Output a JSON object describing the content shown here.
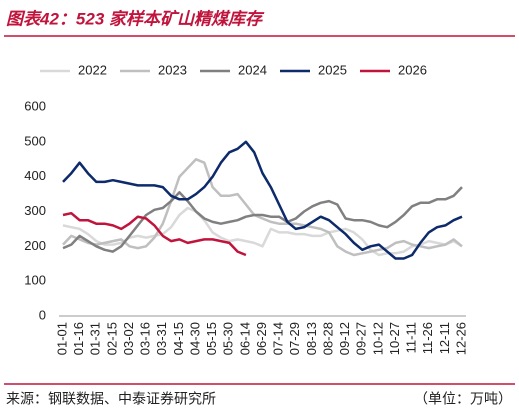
{
  "chart_data": {
    "type": "line",
    "title": "图表42：523 家样本矿山精煤库存",
    "source": "来源：钢联数据、中泰证券研究所",
    "unit": "（单位：万吨）",
    "categories": [
      "01-01",
      null,
      "01-16",
      null,
      "01-31",
      null,
      "02-15",
      null,
      "03-02",
      null,
      "03-16",
      null,
      "03-31",
      null,
      "04-15",
      null,
      "04-30",
      null,
      "05-15",
      null,
      "05-30",
      null,
      "06-14",
      null,
      "06-29",
      null,
      "07-14",
      null,
      "07-29",
      null,
      "08-13",
      null,
      "08-28",
      null,
      "09-12",
      null,
      "09-27",
      null,
      "10-12",
      null,
      "10-27",
      null,
      "11-11",
      null,
      "11-26",
      null,
      "12-11",
      null,
      "12-26"
    ],
    "ylim": [
      0,
      600
    ],
    "yticks": [
      0,
      100,
      200,
      300,
      400,
      500,
      600
    ],
    "grid": false,
    "series": [
      {
        "name": "2022",
        "color": "#d9d9d9",
        "values": [
          260,
          255,
          250,
          235,
          215,
          205,
          205,
          210,
          225,
          230,
          225,
          230,
          235,
          255,
          290,
          310,
          300,
          275,
          240,
          225,
          215,
          220,
          215,
          210,
          200,
          250,
          240,
          240,
          235,
          235,
          230,
          230,
          240,
          245,
          250,
          240,
          220,
          190,
          175,
          180,
          180,
          185,
          200,
          205,
          215,
          210,
          205,
          215,
          200
        ]
      },
      {
        "name": "2023",
        "color": "#bfbfbf",
        "values": [
          205,
          230,
          220,
          210,
          205,
          210,
          215,
          220,
          200,
          195,
          200,
          225,
          265,
          330,
          400,
          425,
          450,
          440,
          370,
          345,
          345,
          350,
          320,
          290,
          280,
          270,
          265,
          265,
          265,
          260,
          255,
          250,
          240,
          200,
          185,
          175,
          180,
          185,
          190,
          195,
          210,
          215,
          205,
          200,
          195,
          200,
          205,
          220,
          200
        ]
      },
      {
        "name": "2024",
        "color": "#808080",
        "values": [
          195,
          205,
          230,
          215,
          200,
          190,
          185,
          200,
          230,
          260,
          290,
          305,
          310,
          330,
          355,
          330,
          300,
          280,
          270,
          265,
          270,
          275,
          285,
          290,
          290,
          285,
          285,
          270,
          280,
          300,
          315,
          325,
          330,
          320,
          280,
          275,
          275,
          270,
          260,
          255,
          270,
          290,
          315,
          325,
          325,
          335,
          335,
          345,
          370
        ]
      },
      {
        "name": "2025",
        "color": "#0d2a6b",
        "values": [
          385,
          410,
          440,
          410,
          385,
          385,
          390,
          385,
          380,
          375,
          375,
          375,
          370,
          345,
          335,
          335,
          350,
          370,
          400,
          440,
          470,
          480,
          500,
          470,
          410,
          370,
          320,
          270,
          250,
          255,
          270,
          285,
          275,
          255,
          235,
          210,
          190,
          200,
          205,
          185,
          165,
          165,
          175,
          210,
          240,
          255,
          260,
          275,
          285
        ]
      },
      {
        "name": "2026",
        "color": "#c0143c",
        "values": [
          290,
          295,
          275,
          275,
          265,
          265,
          260,
          250,
          265,
          285,
          280,
          260,
          230,
          215,
          220,
          210,
          215,
          220,
          220,
          215,
          210,
          185,
          175,
          null,
          null,
          null,
          null,
          null,
          null,
          null,
          null,
          null,
          null,
          null,
          null,
          null,
          null,
          null,
          null,
          null,
          null,
          null,
          null,
          null,
          null,
          null,
          null,
          null,
          null
        ]
      }
    ]
  }
}
